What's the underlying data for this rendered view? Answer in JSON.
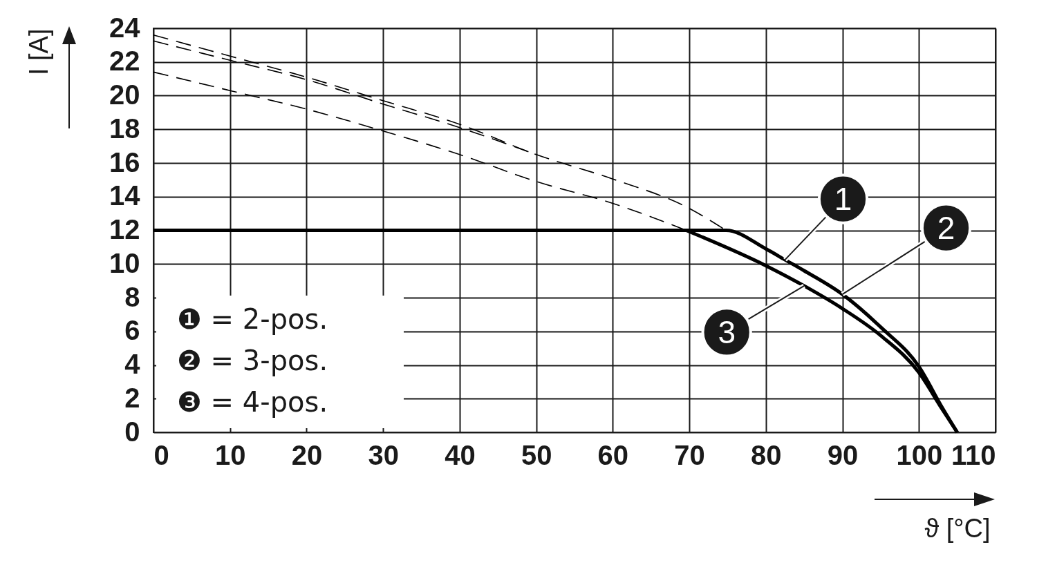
{
  "chart_data": {
    "type": "line",
    "xlabel": "ϑ [°C]",
    "ylabel": "I [A]",
    "xlim": [
      0,
      110
    ],
    "ylim": [
      0,
      24
    ],
    "xticks": [
      0,
      10,
      20,
      30,
      40,
      50,
      60,
      70,
      80,
      90,
      100,
      110
    ],
    "yticks": [
      0,
      2,
      4,
      6,
      8,
      10,
      12,
      14,
      16,
      18,
      20,
      22,
      24
    ],
    "grid": true,
    "series": [
      {
        "color": "#000000",
        "line_style": "dashed",
        "x": [
          0,
          10,
          20,
          30,
          40,
          50,
          60,
          70,
          74.8
        ],
        "values": [
          23.6,
          22.35,
          21.1,
          19.7,
          18.3,
          16.5,
          15.05,
          13.3,
          12
        ]
      },
      {
        "color": "#000000",
        "line_style": "dashed",
        "x": [
          0,
          10,
          20,
          30,
          40,
          50
        ],
        "values": [
          23.25,
          22.1,
          20.95,
          19.5,
          18.1,
          16.5
        ]
      },
      {
        "color": "#000000",
        "line_style": "dashed",
        "x": [
          0,
          10,
          20,
          30,
          40,
          50,
          60,
          69.6
        ],
        "values": [
          21.4,
          20.3,
          19.2,
          17.9,
          16.5,
          14.9,
          13.6,
          12
        ]
      },
      {
        "color": "#000000",
        "line_style": "solid",
        "x": [
          0,
          74.8,
          80,
          82.5,
          85,
          90,
          95,
          100,
          103,
          105
        ],
        "values": [
          12,
          12,
          10.9,
          10.25,
          9.6,
          8.2,
          6.25,
          3.9,
          1.5,
          0
        ]
      },
      {
        "color": "#000000",
        "line_style": "solid",
        "x": [
          69.6,
          80,
          85,
          90,
          95,
          100,
          103,
          105
        ],
        "values": [
          12,
          9.9,
          8.7,
          7.35,
          5.75,
          3.55,
          1.4,
          0
        ]
      }
    ],
    "annotations": [
      {
        "text": "1",
        "x": 82.5,
        "y": 10.25
      },
      {
        "text": "2",
        "x": 90,
        "y": 8.2
      },
      {
        "text": "3",
        "x": 85,
        "y": 8.7
      },
      "❶ = 2-pos.",
      "❷ = 3-pos.",
      "❸ = 4-pos."
    ]
  }
}
